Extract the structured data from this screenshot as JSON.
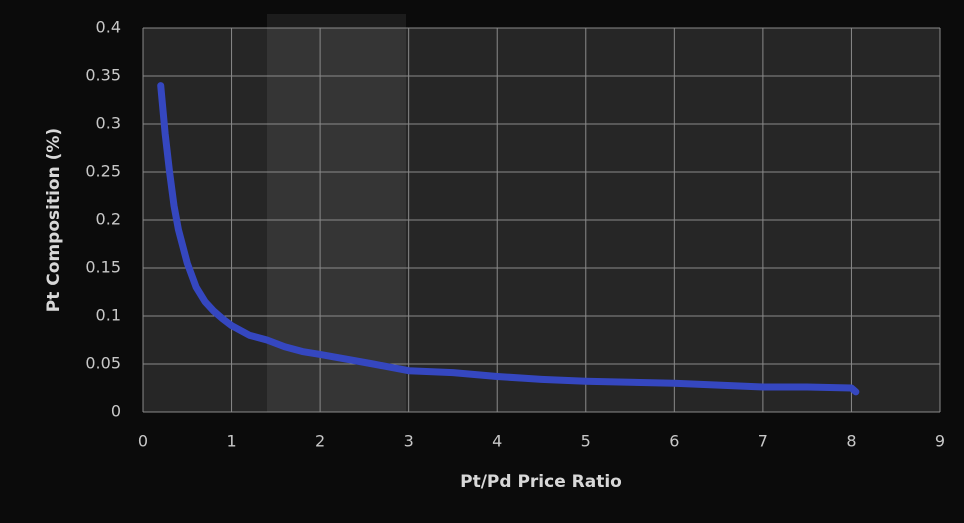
{
  "chart_data": {
    "type": "line",
    "xlabel": "Pt/Pd Price Ratio",
    "ylabel": "Pt Composition (%)",
    "series": [
      {
        "name": "Pt composition",
        "color": "#3547c0",
        "x": [
          0.2,
          0.25,
          0.3,
          0.35,
          0.4,
          0.5,
          0.6,
          0.7,
          0.8,
          0.9,
          1,
          1.2,
          1.4,
          1.6,
          1.8,
          2,
          2.3,
          2.6,
          3,
          3.5,
          4,
          4.5,
          5,
          5.5,
          6,
          6.5,
          7,
          7.5,
          8,
          8.05
        ],
        "values": [
          0.34,
          0.29,
          0.25,
          0.215,
          0.19,
          0.155,
          0.13,
          0.115,
          0.105,
          0.097,
          0.09,
          0.08,
          0.075,
          0.068,
          0.063,
          0.06,
          0.055,
          0.05,
          0.043,
          0.041,
          0.037,
          0.034,
          0.032,
          0.031,
          0.03,
          0.028,
          0.026,
          0.026,
          0.025,
          0.021
        ]
      }
    ],
    "xlim": [
      0,
      9
    ],
    "xticks": [
      0,
      1,
      2,
      3,
      4,
      5,
      6,
      7,
      8,
      9
    ],
    "ylim": [
      0,
      0.4
    ],
    "yticks": [
      0,
      0.05,
      0.1,
      0.15,
      0.2,
      0.25,
      0.3,
      0.35,
      0.4
    ],
    "grid": true
  }
}
